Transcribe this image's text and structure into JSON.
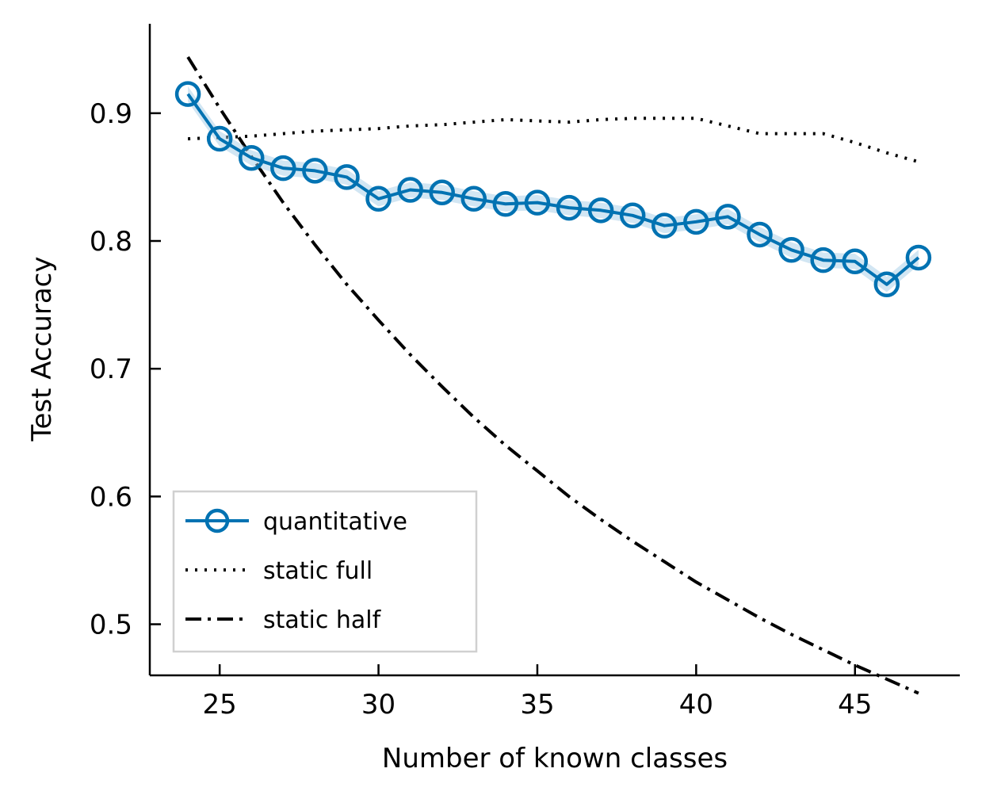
{
  "chart_data": {
    "type": "line",
    "xlabel": "Number of known classes",
    "ylabel": "Test Accuracy",
    "xlim": [
      22.8,
      48.3
    ],
    "ylim": [
      0.46,
      0.97
    ],
    "xticks": [
      25,
      30,
      35,
      40,
      45
    ],
    "xtick_labels": [
      "25",
      "30",
      "35",
      "40",
      "45"
    ],
    "yticks": [
      0.5,
      0.6,
      0.7,
      0.8,
      0.9
    ],
    "ytick_labels": [
      "0.5",
      "0.6",
      "0.7",
      "0.8",
      "0.9"
    ],
    "grid": false,
    "legend_position": "lower-left",
    "series": [
      {
        "name": "quantitative",
        "style": "solid-circle-markers",
        "color": "#0072b2",
        "band_color": "#a6cde8",
        "x": [
          24,
          25,
          26,
          27,
          28,
          29,
          30,
          31,
          32,
          33,
          34,
          35,
          36,
          37,
          38,
          39,
          40,
          41,
          42,
          43,
          44,
          45,
          46,
          47
        ],
        "values": [
          0.915,
          0.88,
          0.865,
          0.857,
          0.855,
          0.85,
          0.833,
          0.84,
          0.838,
          0.833,
          0.829,
          0.83,
          0.826,
          0.824,
          0.82,
          0.812,
          0.815,
          0.819,
          0.805,
          0.793,
          0.785,
          0.784,
          0.766,
          0.787
        ]
      },
      {
        "name": "static full",
        "style": "dotted",
        "color": "#000000",
        "x": [
          24,
          25,
          26,
          27,
          28,
          29,
          30,
          31,
          32,
          33,
          34,
          35,
          36,
          37,
          38,
          39,
          40,
          41,
          42,
          43,
          44,
          45,
          46,
          47
        ],
        "values": [
          0.88,
          0.881,
          0.882,
          0.884,
          0.886,
          0.887,
          0.888,
          0.89,
          0.891,
          0.893,
          0.895,
          0.894,
          0.893,
          0.895,
          0.896,
          0.896,
          0.896,
          0.89,
          0.884,
          0.884,
          0.884,
          0.877,
          0.869,
          0.862
        ]
      },
      {
        "name": "static half",
        "style": "dash-dot",
        "color": "#000000",
        "x": [
          24,
          25,
          26,
          27,
          28,
          29,
          30,
          31,
          32,
          33,
          34,
          35,
          36,
          37,
          38,
          39,
          40,
          41,
          42,
          43,
          44,
          45,
          46,
          47
        ],
        "values": [
          0.944,
          0.904,
          0.866,
          0.83,
          0.797,
          0.766,
          0.738,
          0.711,
          0.686,
          0.662,
          0.64,
          0.62,
          0.6,
          0.582,
          0.565,
          0.549,
          0.533,
          0.519,
          0.505,
          0.492,
          0.48,
          0.468,
          0.457,
          0.446
        ]
      }
    ]
  }
}
